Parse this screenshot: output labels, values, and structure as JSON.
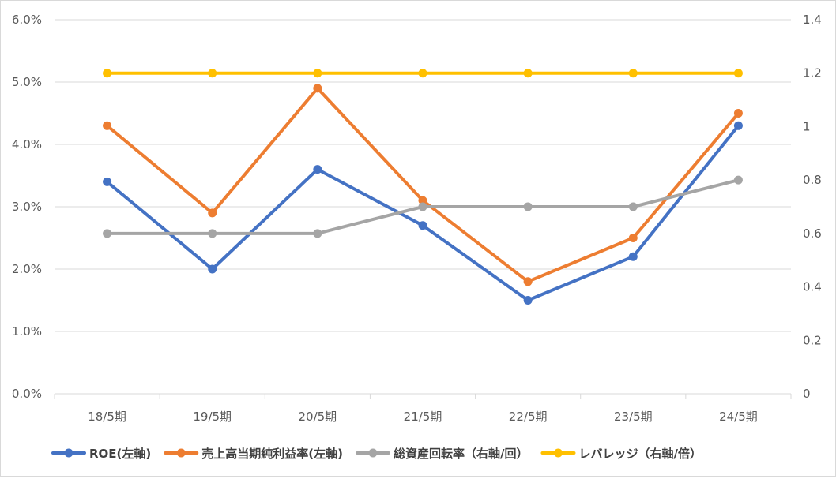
{
  "chart_data": {
    "type": "line",
    "categories": [
      "18/5期",
      "19/5期",
      "20/5期",
      "21/5期",
      "22/5期",
      "23/5期",
      "24/5期"
    ],
    "y_left": {
      "ticks": [
        "0.0%",
        "1.0%",
        "2.0%",
        "3.0%",
        "4.0%",
        "5.0%",
        "6.0%"
      ],
      "range": [
        0,
        6
      ],
      "unit": "%"
    },
    "y_right": {
      "ticks": [
        "0",
        "0.2",
        "0.4",
        "0.6",
        "0.8",
        "1",
        "1.2",
        "1.4"
      ],
      "range": [
        0,
        1.4
      ]
    },
    "grid": "horizontal",
    "legend_position": "bottom",
    "series": [
      {
        "name": "ROE(左軸)",
        "axis": "left",
        "color": "#4472C4",
        "values": [
          3.4,
          2.0,
          3.6,
          2.7,
          1.5,
          2.2,
          4.3
        ]
      },
      {
        "name": "売上高当期純利益率(左軸)",
        "axis": "left",
        "color": "#ED7D31",
        "values": [
          4.3,
          2.9,
          4.9,
          3.1,
          1.8,
          2.5,
          4.5
        ]
      },
      {
        "name": "総資産回転率（右軸/回）",
        "axis": "right",
        "color": "#A5A5A5",
        "values": [
          0.6,
          0.6,
          0.6,
          0.7,
          0.7,
          0.7,
          0.8
        ]
      },
      {
        "name": "レバレッジ（右軸/倍）",
        "axis": "right",
        "color": "#FFC000",
        "values": [
          1.2,
          1.2,
          1.2,
          1.2,
          1.2,
          1.2,
          1.2
        ]
      }
    ]
  }
}
